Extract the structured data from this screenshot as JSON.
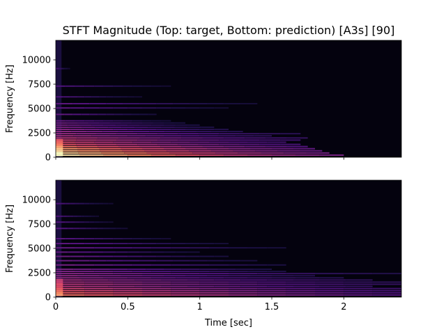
{
  "chart_data": {
    "title": "STFT Magnitude (Top: target, Bottom: prediction) [A3s] [90]",
    "colormap": "magma",
    "panels": [
      {
        "name": "target",
        "type": "heatmap",
        "ylabel": "Frequency [Hz]",
        "xlabel": "",
        "xlim": [
          0,
          2.4
        ],
        "ylim": [
          0,
          12000
        ],
        "yticks": [
          0,
          2500,
          5000,
          7500,
          10000
        ],
        "xticks": [
          0,
          0.5,
          1,
          1.5,
          2
        ],
        "show_xticklabels": false,
        "harmonics": [
          {
            "f": 220,
            "dur": 2.0,
            "level": 0.95
          },
          {
            "f": 440,
            "dur": 1.9,
            "level": 0.9
          },
          {
            "f": 660,
            "dur": 1.85,
            "level": 0.82
          },
          {
            "f": 880,
            "dur": 1.8,
            "level": 0.78
          },
          {
            "f": 1100,
            "dur": 1.75,
            "level": 0.7
          },
          {
            "f": 1320,
            "dur": 1.7,
            "level": 0.62
          },
          {
            "f": 1540,
            "dur": 1.6,
            "level": 0.58
          },
          {
            "f": 1760,
            "dur": 1.7,
            "level": 0.55
          },
          {
            "f": 1980,
            "dur": 1.75,
            "level": 0.5
          },
          {
            "f": 2200,
            "dur": 1.5,
            "level": 0.45
          },
          {
            "f": 2420,
            "dur": 1.7,
            "level": 0.42
          },
          {
            "f": 2640,
            "dur": 1.3,
            "level": 0.4
          },
          {
            "f": 2860,
            "dur": 1.2,
            "level": 0.38
          },
          {
            "f": 3080,
            "dur": 1.1,
            "level": 0.36
          },
          {
            "f": 3300,
            "dur": 1.0,
            "level": 0.34
          },
          {
            "f": 3520,
            "dur": 0.9,
            "level": 0.33
          },
          {
            "f": 3740,
            "dur": 0.8,
            "level": 0.3
          },
          {
            "f": 4400,
            "dur": 0.7,
            "level": 0.3
          },
          {
            "f": 5060,
            "dur": 1.2,
            "level": 0.28
          },
          {
            "f": 5500,
            "dur": 1.4,
            "level": 0.28
          },
          {
            "f": 6200,
            "dur": 0.6,
            "level": 0.25
          },
          {
            "f": 7300,
            "dur": 0.8,
            "level": 0.25
          },
          {
            "f": 9100,
            "dur": 0.1,
            "level": 0.25
          }
        ]
      },
      {
        "name": "prediction",
        "type": "heatmap",
        "ylabel": "Frequency [Hz]",
        "xlabel": "Time [sec]",
        "xlim": [
          0,
          2.4
        ],
        "ylim": [
          0,
          12000
        ],
        "yticks": [
          0,
          2500,
          5000,
          7500,
          10000
        ],
        "xticks": [
          0,
          0.5,
          1,
          1.5,
          2
        ],
        "xticklabels": [
          "0",
          "0.5",
          "1",
          "1.5",
          "2"
        ],
        "show_xticklabels": true,
        "harmonics": [
          {
            "f": 220,
            "dur": 2.4,
            "level": 0.7
          },
          {
            "f": 440,
            "dur": 2.4,
            "level": 0.65
          },
          {
            "f": 660,
            "dur": 2.4,
            "level": 0.6
          },
          {
            "f": 880,
            "dur": 2.4,
            "level": 0.55
          },
          {
            "f": 1100,
            "dur": 2.2,
            "level": 0.5
          },
          {
            "f": 1320,
            "dur": 2.4,
            "level": 0.5
          },
          {
            "f": 1540,
            "dur": 2.4,
            "level": 0.45
          },
          {
            "f": 1760,
            "dur": 2.2,
            "level": 0.45
          },
          {
            "f": 1980,
            "dur": 2.0,
            "level": 0.4
          },
          {
            "f": 2200,
            "dur": 1.8,
            "level": 0.4
          },
          {
            "f": 2420,
            "dur": 2.4,
            "level": 0.38
          },
          {
            "f": 2640,
            "dur": 1.6,
            "level": 0.36
          },
          {
            "f": 2860,
            "dur": 1.5,
            "level": 0.35
          },
          {
            "f": 3300,
            "dur": 1.6,
            "level": 0.34
          },
          {
            "f": 3740,
            "dur": 1.4,
            "level": 0.32
          },
          {
            "f": 4180,
            "dur": 1.2,
            "level": 0.32
          },
          {
            "f": 4620,
            "dur": 1.0,
            "level": 0.3
          },
          {
            "f": 5060,
            "dur": 1.6,
            "level": 0.3
          },
          {
            "f": 5500,
            "dur": 1.2,
            "level": 0.28
          },
          {
            "f": 6000,
            "dur": 0.8,
            "level": 0.27
          },
          {
            "f": 7050,
            "dur": 0.5,
            "level": 0.27
          },
          {
            "f": 7700,
            "dur": 0.4,
            "level": 0.26
          },
          {
            "f": 8300,
            "dur": 0.3,
            "level": 0.25
          },
          {
            "f": 9600,
            "dur": 0.4,
            "level": 0.25
          }
        ]
      }
    ]
  }
}
